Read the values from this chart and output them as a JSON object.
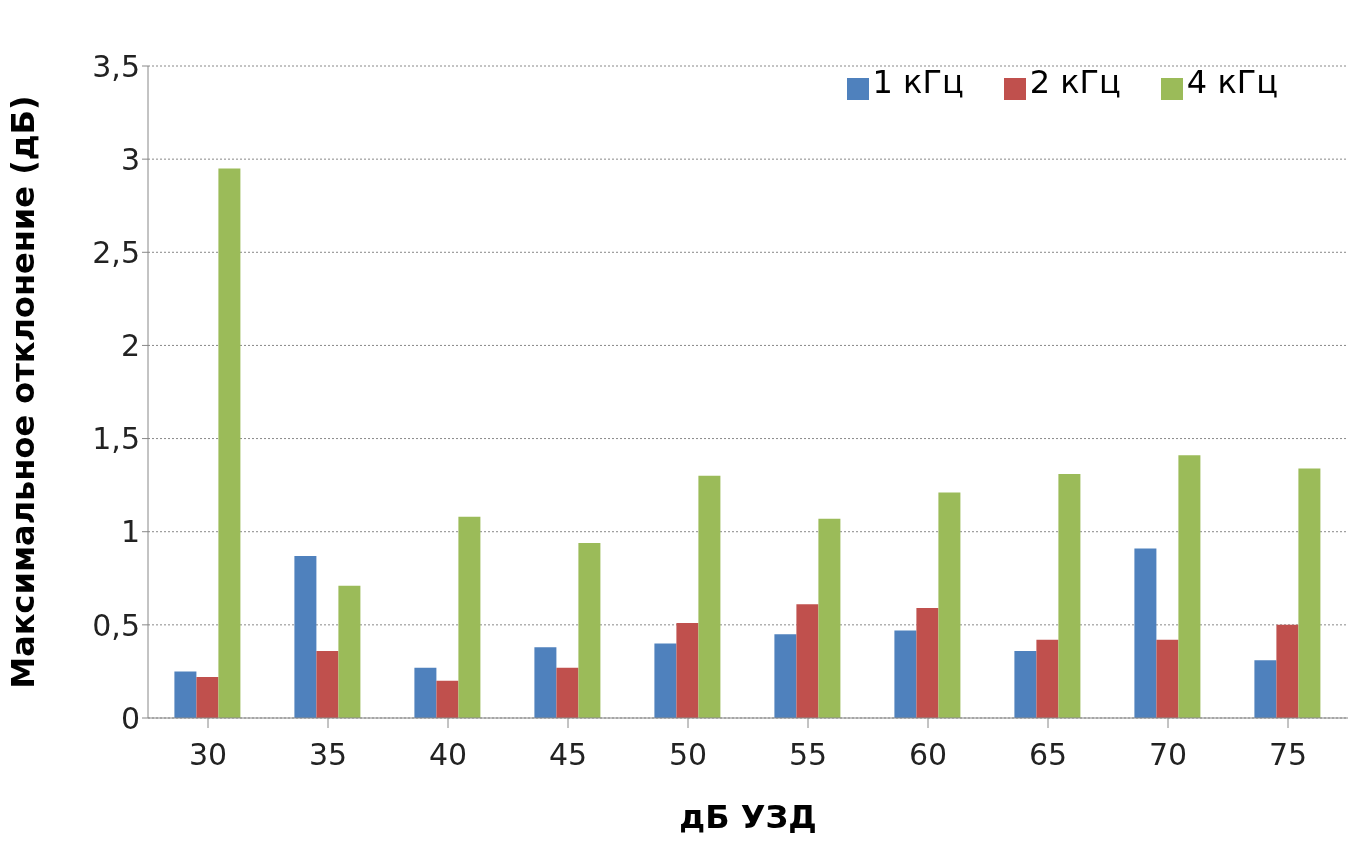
{
  "chart_data": {
    "type": "bar",
    "xlabel": "дБ УЗД",
    "ylabel": "Максимальное отклонение (дБ)",
    "categories": [
      "30",
      "35",
      "40",
      "45",
      "50",
      "55",
      "60",
      "65",
      "70",
      "75"
    ],
    "series": [
      {
        "name": "1 кГц",
        "color": "#4f81bd",
        "values": [
          0.25,
          0.87,
          0.27,
          0.38,
          0.4,
          0.45,
          0.47,
          0.36,
          0.91,
          0.31
        ]
      },
      {
        "name": "2 кГц",
        "color": "#c0504d",
        "values": [
          0.22,
          0.36,
          0.2,
          0.27,
          0.51,
          0.61,
          0.59,
          0.42,
          0.42,
          0.5
        ]
      },
      {
        "name": "4 кГц",
        "color": "#9bbb59",
        "values": [
          2.95,
          0.71,
          1.08,
          0.94,
          1.3,
          1.07,
          1.21,
          1.31,
          1.41,
          1.34
        ]
      }
    ],
    "ylim": [
      0,
      3.5
    ],
    "yticks": [
      0,
      {
        "value": 0.5,
        "label": "0,5"
      },
      1,
      {
        "value": 1.5,
        "label": "1,5"
      },
      2,
      {
        "value": 2.5,
        "label": "2,5"
      },
      3,
      {
        "value": 3.5,
        "label": "3,5"
      }
    ],
    "grid": "y",
    "legend": "top right"
  }
}
